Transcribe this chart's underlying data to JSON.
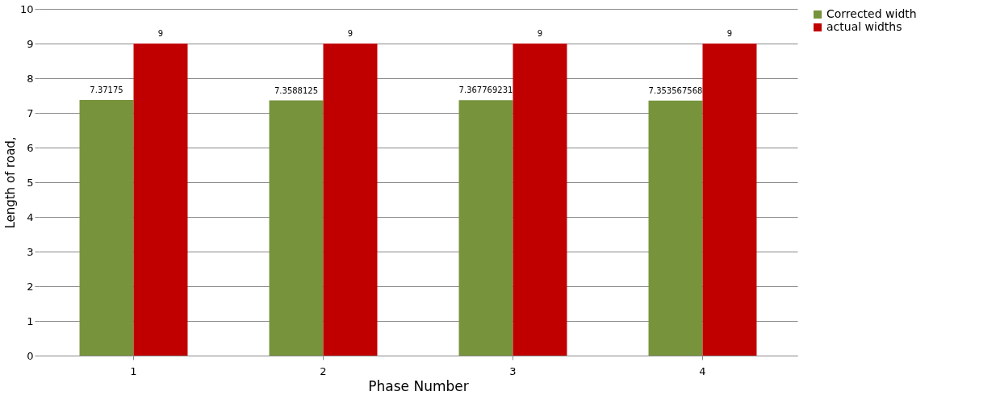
{
  "chart_data": {
    "type": "bar",
    "xlabel": "Phase Number",
    "ylabel": "Length of road,",
    "categories": [
      "1",
      "2",
      "3",
      "4"
    ],
    "series": [
      {
        "name": "Corrected width",
        "color": "#77933c",
        "values": [
          7.37175,
          7.3588125,
          7.367769231,
          7.353567568
        ]
      },
      {
        "name": "actual widths",
        "color": "#c00000",
        "values": [
          9,
          9,
          9,
          9
        ]
      }
    ],
    "ylim": [
      0,
      10
    ],
    "yticks": [
      0,
      1,
      2,
      3,
      4,
      5,
      6,
      7,
      8,
      9,
      10
    ],
    "grid": "y",
    "legend": "right",
    "data_labels": true
  }
}
